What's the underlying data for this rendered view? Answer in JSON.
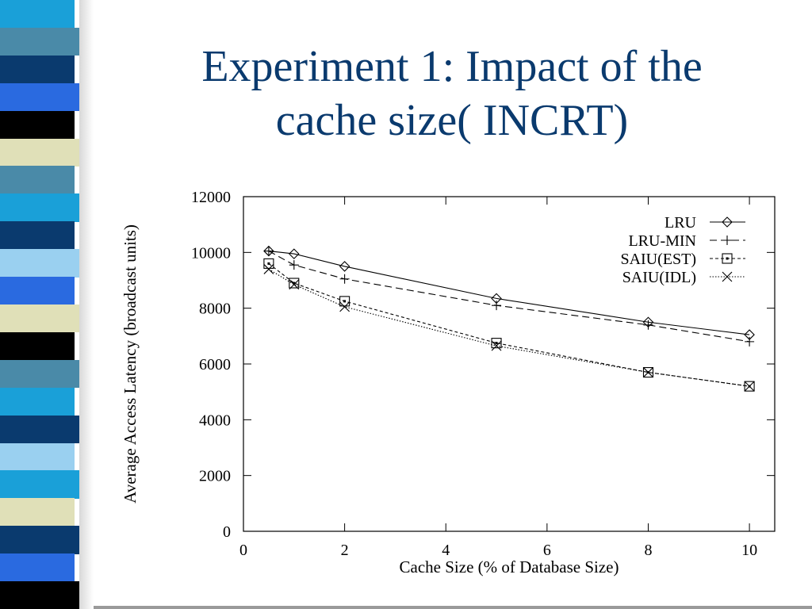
{
  "slide": {
    "title_line1": "Experiment 1: Impact of the",
    "title_line2": "cache size( INCRT)",
    "title_color": "#0a3a6e",
    "stripes": [
      "#1aa0d8",
      "#4a8aa8",
      "#0a3a6e",
      "#2a6ae0",
      "#000000",
      "#e0e0b8",
      "#4a8aa8",
      "#1aa0d8",
      "#0a3a6e",
      "#9ad0f0",
      "#2a6ae0",
      "#e0e0b8",
      "#000000",
      "#4a8aa8",
      "#1aa0d8",
      "#0a3a6e",
      "#9ad0f0",
      "#1aa0d8",
      "#e0e0b8",
      "#0a3a6e",
      "#2a6ae0",
      "#000000"
    ]
  },
  "chart_data": {
    "type": "line",
    "xlabel": "Cache Size (% of Database Size)",
    "ylabel": "Average Access Latency (broadcast units)",
    "xlim": [
      0,
      10.5
    ],
    "ylim": [
      0,
      12000
    ],
    "xticks": [
      0,
      2,
      4,
      6,
      8,
      10
    ],
    "yticks": [
      0,
      2000,
      4000,
      6000,
      8000,
      10000,
      12000
    ],
    "legend_position": "top-right",
    "grid": false,
    "series": [
      {
        "name": "LRU",
        "marker": "diamond",
        "dash": "",
        "x": [
          0.5,
          1,
          2,
          5,
          8,
          10
        ],
        "y": [
          10050,
          9950,
          9500,
          8350,
          7500,
          7050
        ]
      },
      {
        "name": "LRU-MIN",
        "marker": "plus",
        "dash": "9 5",
        "x": [
          0.5,
          1,
          2,
          5,
          8,
          10
        ],
        "y": [
          10050,
          9550,
          9050,
          8100,
          7400,
          6800
        ]
      },
      {
        "name": "SAIU(EST)",
        "marker": "square",
        "dash": "4 3",
        "x": [
          0.5,
          1,
          2,
          5,
          8,
          10
        ],
        "y": [
          9600,
          8900,
          8250,
          6750,
          5700,
          5200
        ]
      },
      {
        "name": "SAIU(IDL)",
        "marker": "x",
        "dash": "1.5 2",
        "x": [
          0.5,
          1,
          2,
          5,
          8,
          10
        ],
        "y": [
          9400,
          8850,
          8050,
          6650,
          5700,
          5200
        ]
      }
    ]
  }
}
